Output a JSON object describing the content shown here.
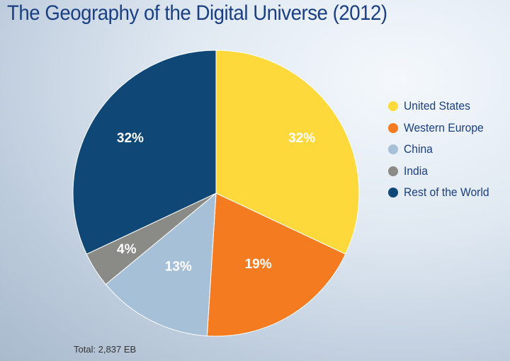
{
  "chart_data": {
    "type": "pie",
    "title": "The Geography of the Digital Universe (2012)",
    "categories": [
      "United States",
      "Western Europe",
      "China",
      "India",
      "Rest of the World"
    ],
    "values": [
      32,
      19,
      13,
      4,
      32
    ],
    "value_labels": [
      "32%",
      "19%",
      "13%",
      "4%",
      "32%"
    ],
    "colors": [
      "#fdd93b",
      "#f47b20",
      "#a6c0d8",
      "#8a8a87",
      "#0f4876"
    ],
    "legend_position": "right",
    "note": "Total: 2,837 EB"
  }
}
